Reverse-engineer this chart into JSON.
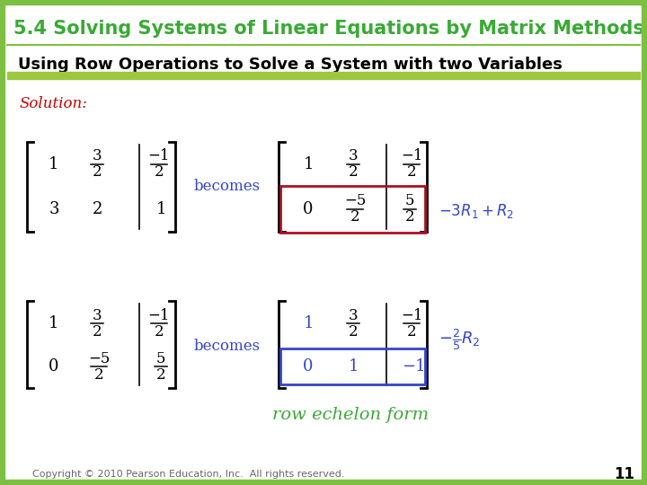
{
  "title": "5.4 Solving Systems of Linear Equations by Matrix Methods",
  "subtitle": "Using Row Operations to Solve a System with two Variables",
  "solution_label": "Solution:",
  "becomes_text": "becomes",
  "row_echelon_text": "row echelon form",
  "copyright_text": "Copyright © 2010 Pearson Education, Inc.  All rights reserved.",
  "page_number": "11",
  "title_color": "#3AAA35",
  "subtitle_color": "#000000",
  "solution_color": "#CC0000",
  "becomes_color": "#3344CC",
  "row_echelon_color": "#3AAA35",
  "annotation_color": "#3344CC",
  "matrix_color": "#000000",
  "header_bg": "#FFFFFF",
  "border_color": "#7DC041",
  "underline_color": "#9DC840",
  "highlight_box_color": "#AA1122",
  "highlight_box2_color": "#3344CC",
  "page_bg": "#FFFFFF"
}
